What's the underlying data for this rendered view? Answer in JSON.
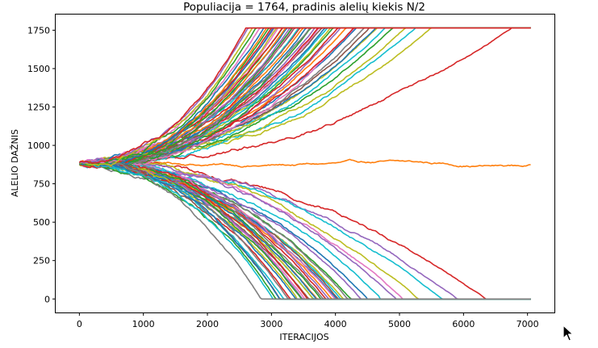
{
  "chart_data": {
    "type": "line",
    "title": "Populiacija = 1764, pradinis alelių kiekis N/2",
    "xlabel": "ITERACIJOS",
    "ylabel": "ALELIO DAŽNIS",
    "xlim": [
      -370,
      7420
    ],
    "ylim": [
      -88,
      1852
    ],
    "xticks": [
      0,
      1000,
      2000,
      3000,
      4000,
      5000,
      6000,
      7000
    ],
    "yticks": [
      0,
      250,
      500,
      750,
      1000,
      1250,
      1500,
      1750
    ],
    "start_value": 882,
    "fixation_top": 1764,
    "fixation_bottom": 0,
    "x_end": 7050,
    "grid": false,
    "legend": "none",
    "palette": [
      "#1f77b4",
      "#ff7f0e",
      "#2ca02c",
      "#d62728",
      "#9467bd",
      "#8c564b",
      "#e377c2",
      "#7f7f7f",
      "#bcbd22",
      "#17becf"
    ],
    "series": [
      {
        "color": "#ff7f0e",
        "fix": null,
        "t": 7050,
        "end": 872
      },
      {
        "color": "#d62728",
        "fix": "top",
        "t": 6750
      },
      {
        "color": "#d62728",
        "fix": "bottom",
        "t": 6330
      },
      {
        "color": "#9467bd",
        "fix": "bottom",
        "t": 5930
      },
      {
        "color": "#17becf",
        "fix": "bottom",
        "t": 5660
      },
      {
        "color": "#bcbd22",
        "fix": "top",
        "t": 5480
      },
      {
        "color": "#bcbd22",
        "fix": "bottom",
        "t": 5300
      },
      {
        "color": "#17becf",
        "fix": "top",
        "t": 5250
      },
      {
        "color": "#bcbd22",
        "fix": "top",
        "t": 5080
      },
      {
        "color": "#e377c2",
        "fix": "bottom",
        "t": 5050
      },
      {
        "color": "#9467bd",
        "fix": "bottom",
        "t": 4950
      },
      {
        "color": "#2ca02c",
        "fix": "top",
        "t": 4900
      },
      {
        "color": "#17becf",
        "fix": "top",
        "t": 4780
      },
      {
        "color": "#17becf",
        "fix": "bottom",
        "t": 4700
      },
      {
        "color": "#bcbd22",
        "fix": "top",
        "t": 4650
      },
      {
        "color": "#1f77b4",
        "fix": "top",
        "t": 4620
      },
      {
        "color": "#1f77b4",
        "fix": "bottom",
        "t": 4500
      },
      {
        "color": "#8c564b",
        "fix": "top",
        "t": 4520
      },
      {
        "color": "#7f7f7f",
        "fix": "top",
        "t": 4450
      },
      {
        "color": "#9467bd",
        "fix": "bottom",
        "t": 4400
      },
      {
        "color": "#1f77b4",
        "fix": "top",
        "t": 4330
      },
      {
        "color": "#e377c2",
        "fix": "top",
        "t": 4300
      },
      {
        "color": "#d62728",
        "fix": "top",
        "t": 4280
      },
      {
        "color": "#2ca02c",
        "fix": "bottom",
        "t": 4230
      },
      {
        "color": "#7f7f7f",
        "fix": "bottom",
        "t": 4180
      },
      {
        "color": "#ff7f0e",
        "fix": "top",
        "t": 4160
      },
      {
        "color": "#bcbd22",
        "fix": "bottom",
        "t": 4130
      },
      {
        "color": "#17becf",
        "fix": "bottom",
        "t": 4080
      },
      {
        "color": "#8c564b",
        "fix": "bottom",
        "t": 4050
      },
      {
        "color": "#9467bd",
        "fix": "top",
        "t": 4070
      },
      {
        "color": "#d62728",
        "fix": "top",
        "t": 4030
      },
      {
        "color": "#1f77b4",
        "fix": "bottom",
        "t": 4010
      },
      {
        "color": "#e377c2",
        "fix": "bottom",
        "t": 3980
      },
      {
        "color": "#2ca02c",
        "fix": "top",
        "t": 3960
      },
      {
        "color": "#ff7f0e",
        "fix": "bottom",
        "t": 3940
      },
      {
        "color": "#bcbd22",
        "fix": "top",
        "t": 3920
      },
      {
        "color": "#9467bd",
        "fix": "bottom",
        "t": 3890
      },
      {
        "color": "#17becf",
        "fix": "top",
        "t": 3870
      },
      {
        "color": "#d62728",
        "fix": "bottom",
        "t": 3850
      },
      {
        "color": "#1f77b4",
        "fix": "top",
        "t": 3830
      },
      {
        "color": "#7f7f7f",
        "fix": "bottom",
        "t": 3810
      },
      {
        "color": "#8c564b",
        "fix": "top",
        "t": 3790
      },
      {
        "color": "#2ca02c",
        "fix": "bottom",
        "t": 3770
      },
      {
        "color": "#e377c2",
        "fix": "top",
        "t": 3750
      },
      {
        "color": "#d62728",
        "fix": "top",
        "t": 3730
      },
      {
        "color": "#ff7f0e",
        "fix": "bottom",
        "t": 3710
      },
      {
        "color": "#1f77b4",
        "fix": "bottom",
        "t": 3690
      },
      {
        "color": "#9467bd",
        "fix": "top",
        "t": 3680
      },
      {
        "color": "#17becf",
        "fix": "bottom",
        "t": 3660
      },
      {
        "color": "#bcbd22",
        "fix": "bottom",
        "t": 3640
      },
      {
        "color": "#2ca02c",
        "fix": "top",
        "t": 3620
      },
      {
        "color": "#7f7f7f",
        "fix": "top",
        "t": 3600
      },
      {
        "color": "#8c564b",
        "fix": "bottom",
        "t": 3580
      },
      {
        "color": "#d62728",
        "fix": "bottom",
        "t": 3560
      },
      {
        "color": "#1f77b4",
        "fix": "top",
        "t": 3540
      },
      {
        "color": "#e377c2",
        "fix": "bottom",
        "t": 3520
      },
      {
        "color": "#ff7f0e",
        "fix": "top",
        "t": 3500
      },
      {
        "color": "#9467bd",
        "fix": "bottom",
        "t": 3480
      },
      {
        "color": "#2ca02c",
        "fix": "bottom",
        "t": 3460
      },
      {
        "color": "#d62728",
        "fix": "top",
        "t": 3440
      },
      {
        "color": "#17becf",
        "fix": "top",
        "t": 3420
      },
      {
        "color": "#bcbd22",
        "fix": "bottom",
        "t": 3400
      },
      {
        "color": "#1f77b4",
        "fix": "bottom",
        "t": 3380
      },
      {
        "color": "#8c564b",
        "fix": "top",
        "t": 3360
      },
      {
        "color": "#e377c2",
        "fix": "top",
        "t": 3340
      },
      {
        "color": "#2ca02c",
        "fix": "top",
        "t": 3320
      },
      {
        "color": "#9467bd",
        "fix": "top",
        "t": 3300
      },
      {
        "color": "#d62728",
        "fix": "bottom",
        "t": 3290
      },
      {
        "color": "#7f7f7f",
        "fix": "bottom",
        "t": 3260
      },
      {
        "color": "#1f77b4",
        "fix": "top",
        "t": 3240
      },
      {
        "color": "#ff7f0e",
        "fix": "top",
        "t": 3220
      },
      {
        "color": "#17becf",
        "fix": "bottom",
        "t": 3200
      },
      {
        "color": "#2ca02c",
        "fix": "top",
        "t": 3180
      },
      {
        "color": "#d62728",
        "fix": "top",
        "t": 3160
      },
      {
        "color": "#8c564b",
        "fix": "bottom",
        "t": 3140
      },
      {
        "color": "#1f77b4",
        "fix": "bottom",
        "t": 3120
      },
      {
        "color": "#e377c2",
        "fix": "top",
        "t": 3100
      },
      {
        "color": "#bcbd22",
        "fix": "top",
        "t": 3080
      },
      {
        "color": "#2ca02c",
        "fix": "bottom",
        "t": 3060
      },
      {
        "color": "#9467bd",
        "fix": "top",
        "t": 3040
      },
      {
        "color": "#1f77b4",
        "fix": "top",
        "t": 3020
      },
      {
        "color": "#d62728",
        "fix": "top",
        "t": 3000
      },
      {
        "color": "#17becf",
        "fix": "bottom",
        "t": 3030
      },
      {
        "color": "#2ca02c",
        "fix": "top",
        "t": 2960
      },
      {
        "color": "#ff7f0e",
        "fix": "top",
        "t": 2920
      },
      {
        "color": "#1f77b4",
        "fix": "top",
        "t": 2880
      },
      {
        "color": "#7f7f7f",
        "fix": "bottom",
        "t": 2840
      },
      {
        "color": "#e377c2",
        "fix": "top",
        "t": 2820
      },
      {
        "color": "#2ca02c",
        "fix": "top",
        "t": 2760
      },
      {
        "color": "#bcbd22",
        "fix": "top",
        "t": 2700
      },
      {
        "color": "#9467bd",
        "fix": "top",
        "t": 2640
      },
      {
        "color": "#d62728",
        "fix": "top",
        "t": 2600
      }
    ]
  },
  "cursor_icon": "mouse-pointer-icon"
}
